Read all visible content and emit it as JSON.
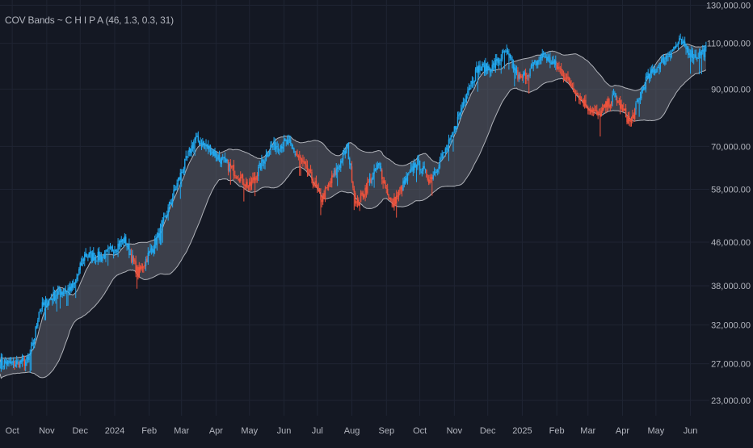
{
  "chart_data": {
    "type": "candlestick",
    "indicator_label": "COV Bands ~ C H I P A (46, 1.3, 0.3, 31)",
    "y_scale": "log",
    "ylim": [
      21500,
      133000
    ],
    "y_ticks": [
      23000,
      27000,
      32000,
      38000,
      46000,
      58000,
      70000,
      90000,
      110000,
      130000
    ],
    "y_tick_labels": [
      "23,000.00",
      "27,000.00",
      "32,000.00",
      "38,000.00",
      "46,000.00",
      "58,000.00",
      "70,000.00",
      "90,000.00",
      "110,000.00",
      "130,000.00"
    ],
    "x_ticks": [
      {
        "date": "2023-10-01",
        "label": "Oct"
      },
      {
        "date": "2023-11-01",
        "label": "Nov"
      },
      {
        "date": "2023-12-01",
        "label": "Dec"
      },
      {
        "date": "2024-01-01",
        "label": "2024"
      },
      {
        "date": "2024-02-01",
        "label": "Feb"
      },
      {
        "date": "2024-03-01",
        "label": "Mar"
      },
      {
        "date": "2024-04-01",
        "label": "Apr"
      },
      {
        "date": "2024-05-01",
        "label": "May"
      },
      {
        "date": "2024-06-01",
        "label": "Jun"
      },
      {
        "date": "2024-07-01",
        "label": "Jul"
      },
      {
        "date": "2024-08-01",
        "label": "Aug"
      },
      {
        "date": "2024-09-01",
        "label": "Sep"
      },
      {
        "date": "2024-10-01",
        "label": "Oct"
      },
      {
        "date": "2024-11-01",
        "label": "Nov"
      },
      {
        "date": "2024-12-01",
        "label": "Dec"
      },
      {
        "date": "2025-01-01",
        "label": "2025"
      },
      {
        "date": "2025-02-01",
        "label": "Feb"
      },
      {
        "date": "2025-03-01",
        "label": "Mar"
      },
      {
        "date": "2025-04-01",
        "label": "Apr"
      },
      {
        "date": "2025-05-01",
        "label": "May"
      },
      {
        "date": "2025-06-01",
        "label": "Jun"
      }
    ],
    "x_range": [
      "2023-09-20",
      "2025-06-18"
    ],
    "price_path": [
      [
        "2023-09-20",
        27100
      ],
      [
        "2023-10-01",
        27000
      ],
      [
        "2023-10-15",
        27300
      ],
      [
        "2023-10-20",
        29500
      ],
      [
        "2023-10-25",
        34200
      ],
      [
        "2023-11-10",
        36800
      ],
      [
        "2023-11-25",
        37800
      ],
      [
        "2023-12-05",
        43500
      ],
      [
        "2023-12-20",
        43000
      ],
      [
        "2024-01-10",
        46500
      ],
      [
        "2024-01-22",
        40000
      ],
      [
        "2024-02-10",
        47500
      ],
      [
        "2024-02-28",
        61000
      ],
      [
        "2024-03-13",
        72500
      ],
      [
        "2024-03-25",
        69500
      ],
      [
        "2024-04-15",
        63500
      ],
      [
        "2024-05-01",
        58500
      ],
      [
        "2024-05-20",
        70000
      ],
      [
        "2024-06-05",
        71000
      ],
      [
        "2024-06-25",
        61500
      ],
      [
        "2024-07-05",
        55500
      ],
      [
        "2024-07-28",
        69500
      ],
      [
        "2024-08-05",
        54000
      ],
      [
        "2024-08-25",
        64500
      ],
      [
        "2024-09-06",
        54000
      ],
      [
        "2024-09-28",
        65500
      ],
      [
        "2024-10-10",
        60500
      ],
      [
        "2024-10-29",
        72000
      ],
      [
        "2024-11-12",
        89000
      ],
      [
        "2024-11-22",
        98500
      ],
      [
        "2024-12-05",
        99000
      ],
      [
        "2024-12-17",
        106000
      ],
      [
        "2024-12-30",
        93500
      ],
      [
        "2025-01-20",
        104500
      ],
      [
        "2025-02-05",
        97500
      ],
      [
        "2025-02-26",
        84500
      ],
      [
        "2025-03-10",
        80000
      ],
      [
        "2025-03-25",
        87500
      ],
      [
        "2025-04-08",
        77500
      ],
      [
        "2025-04-22",
        93500
      ],
      [
        "2025-05-10",
        103500
      ],
      [
        "2025-05-22",
        110500
      ],
      [
        "2025-06-05",
        104000
      ],
      [
        "2025-06-15",
        106500
      ]
    ],
    "bullish_color": "#22a9f0",
    "bearish_color": "#f0533d",
    "band_fill_color": "#5d606b",
    "band_line_color": "#c8cad0",
    "background_color": "#141823",
    "grid": true
  }
}
